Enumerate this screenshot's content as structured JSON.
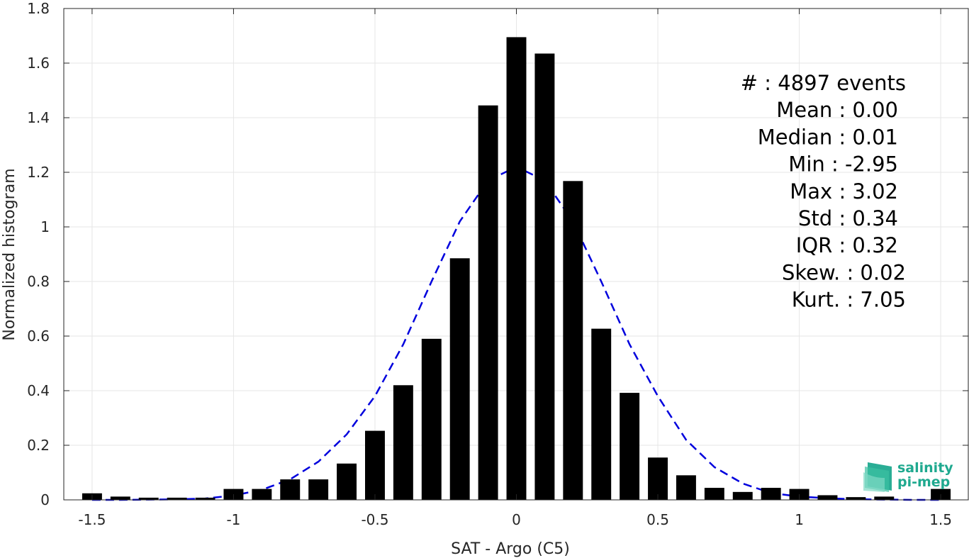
{
  "chart_data": {
    "type": "bar",
    "xlabel": "SAT - Argo (C5)",
    "ylabel": "Normalized histogram",
    "xlim": [
      -1.6,
      1.6
    ],
    "ylim": [
      0,
      1.8
    ],
    "xticks": [
      -1.5,
      -1,
      -0.5,
      0,
      0.5,
      1,
      1.5
    ],
    "xtick_labels": [
      "-1.5",
      "-1",
      "-0.5",
      "0",
      "0.5",
      "1",
      "1.5"
    ],
    "yticks": [
      0,
      0.2,
      0.4,
      0.6,
      0.8,
      1,
      1.2,
      1.4,
      1.6,
      1.8
    ],
    "ytick_labels": [
      "0",
      "0.2",
      "0.4",
      "0.6",
      "0.8",
      "1",
      "1.2",
      "1.4",
      "1.6",
      "1.8"
    ],
    "grid": true,
    "bar_width": 0.07,
    "bar_color": "#000000",
    "bars": {
      "x": [
        -1.5,
        -1.4,
        -1.3,
        -1.2,
        -1.1,
        -1.0,
        -0.9,
        -0.8,
        -0.7,
        -0.6,
        -0.5,
        -0.4,
        -0.3,
        -0.2,
        -0.1,
        0.0,
        0.1,
        0.2,
        0.3,
        0.4,
        0.5,
        0.6,
        0.7,
        0.8,
        0.9,
        1.0,
        1.1,
        1.2,
        1.3,
        1.5
      ],
      "values": [
        0.024,
        0.012,
        0.008,
        0.008,
        0.008,
        0.04,
        0.04,
        0.075,
        0.075,
        0.133,
        0.253,
        0.42,
        0.59,
        0.885,
        1.445,
        1.695,
        1.635,
        1.168,
        0.627,
        0.392,
        0.155,
        0.09,
        0.044,
        0.029,
        0.044,
        0.04,
        0.017,
        0.01,
        0.012,
        0.04
      ]
    },
    "fit_curve": {
      "style": "dashed",
      "color": "#0000dd",
      "x": [
        -1.5,
        -1.4,
        -1.3,
        -1.2,
        -1.1,
        -1.0,
        -0.9,
        -0.8,
        -0.7,
        -0.6,
        -0.5,
        -0.4,
        -0.3,
        -0.2,
        -0.1,
        0.0,
        0.1,
        0.2,
        0.3,
        0.4,
        0.5,
        0.6,
        0.7,
        0.8,
        0.9,
        1.0,
        1.1,
        1.2,
        1.3,
        1.4,
        1.5
      ],
      "values": [
        0.0,
        0.0,
        0.001,
        0.002,
        0.005,
        0.016,
        0.037,
        0.075,
        0.14,
        0.24,
        0.38,
        0.57,
        0.8,
        1.02,
        1.17,
        1.22,
        1.17,
        1.02,
        0.8,
        0.57,
        0.38,
        0.22,
        0.12,
        0.06,
        0.025,
        0.012,
        0.006,
        0.002,
        0.001,
        0.0,
        0.0
      ]
    },
    "annotations": [
      "#  : 4897 events",
      "Mean : 0.00",
      "Median : 0.01",
      "Min : -2.95",
      "Max : 3.02",
      "Std : 0.34",
      "IQR : 0.32",
      "Skew. : 0.02",
      "Kurt. : 7.05"
    ]
  },
  "logo": {
    "line1": "salinity",
    "line2": "pi-mep",
    "color": "#1fa98f"
  }
}
